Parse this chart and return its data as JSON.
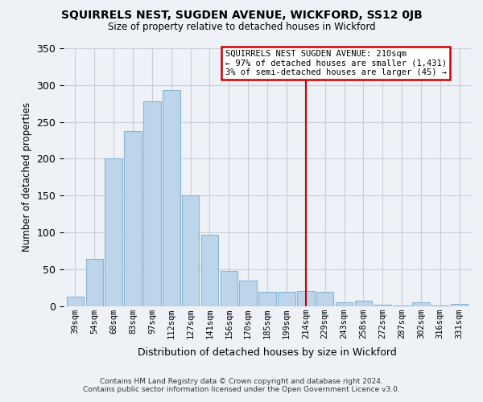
{
  "title": "SQUIRRELS NEST, SUGDEN AVENUE, WICKFORD, SS12 0JB",
  "subtitle": "Size of property relative to detached houses in Wickford",
  "xlabel": "Distribution of detached houses by size in Wickford",
  "ylabel": "Number of detached properties",
  "bar_labels": [
    "39sqm",
    "54sqm",
    "68sqm",
    "83sqm",
    "97sqm",
    "112sqm",
    "127sqm",
    "141sqm",
    "156sqm",
    "170sqm",
    "185sqm",
    "199sqm",
    "214sqm",
    "229sqm",
    "243sqm",
    "258sqm",
    "272sqm",
    "287sqm",
    "302sqm",
    "316sqm",
    "331sqm"
  ],
  "bar_values": [
    13,
    64,
    200,
    238,
    278,
    293,
    150,
    97,
    48,
    35,
    19,
    19,
    20,
    19,
    5,
    7,
    2,
    1,
    5,
    1,
    3
  ],
  "bar_color": "#bdd5ea",
  "bar_edge_color": "#8ab4d4",
  "ylim": [
    0,
    350
  ],
  "yticks": [
    0,
    50,
    100,
    150,
    200,
    250,
    300,
    350
  ],
  "vline_x": 12,
  "vline_color": "#cc0000",
  "annotation_title": "SQUIRRELS NEST SUGDEN AVENUE: 210sqm",
  "annotation_line1": "← 97% of detached houses are smaller (1,431)",
  "annotation_line2": "3% of semi-detached houses are larger (45) →",
  "footer_line1": "Contains HM Land Registry data © Crown copyright and database right 2024.",
  "footer_line2": "Contains public sector information licensed under the Open Government Licence v3.0.",
  "bg_color": "#eef2f7",
  "plot_bg_color": "#eef2f7",
  "grid_color": "#c8cdd8"
}
